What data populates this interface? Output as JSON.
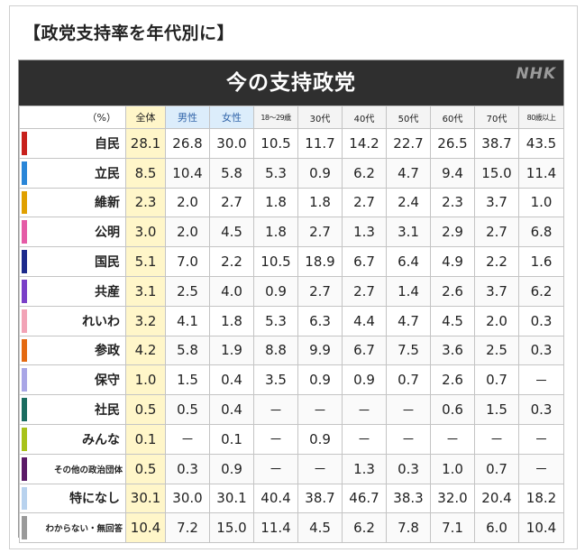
{
  "section_title": "【政党支持率を年代別に】",
  "banner": {
    "title": "今の支持政党",
    "logo": "NHK"
  },
  "chart_data": {
    "type": "table",
    "title": "今の支持政党",
    "unit_label": "（%）",
    "columns": [
      "全体",
      "男性",
      "女性",
      "18～29歳",
      "30代",
      "40代",
      "50代",
      "60代",
      "70代",
      "80歳以上"
    ],
    "rows": [
      {
        "party": "自民",
        "color": "#c8201c",
        "values": [
          "28.1",
          "26.8",
          "30.0",
          "10.5",
          "11.7",
          "14.2",
          "22.7",
          "26.5",
          "38.7",
          "43.5"
        ]
      },
      {
        "party": "立民",
        "color": "#2a86d8",
        "values": [
          "8.5",
          "10.4",
          "5.8",
          "5.3",
          "0.9",
          "6.2",
          "4.7",
          "9.4",
          "15.0",
          "11.4"
        ]
      },
      {
        "party": "維新",
        "color": "#e0a000",
        "values": [
          "2.3",
          "2.0",
          "2.7",
          "1.8",
          "1.8",
          "2.7",
          "2.4",
          "2.3",
          "3.7",
          "1.0"
        ]
      },
      {
        "party": "公明",
        "color": "#e55ba6",
        "values": [
          "3.0",
          "2.0",
          "4.5",
          "1.8",
          "2.7",
          "1.3",
          "3.1",
          "2.9",
          "2.7",
          "6.8"
        ]
      },
      {
        "party": "国民",
        "color": "#1c2a8c",
        "values": [
          "5.1",
          "7.0",
          "2.2",
          "10.5",
          "18.9",
          "6.7",
          "6.4",
          "4.9",
          "2.2",
          "1.6"
        ]
      },
      {
        "party": "共産",
        "color": "#7a3fc8",
        "values": [
          "3.1",
          "2.5",
          "4.0",
          "0.9",
          "2.7",
          "2.7",
          "1.4",
          "2.6",
          "3.7",
          "6.2"
        ]
      },
      {
        "party": "れいわ",
        "color": "#f2a3b6",
        "values": [
          "3.2",
          "4.1",
          "1.8",
          "5.3",
          "6.3",
          "4.4",
          "4.7",
          "4.5",
          "2.0",
          "0.3"
        ]
      },
      {
        "party": "参政",
        "color": "#e46a12",
        "values": [
          "4.2",
          "5.8",
          "1.9",
          "8.8",
          "9.9",
          "6.7",
          "7.5",
          "3.6",
          "2.5",
          "0.3"
        ]
      },
      {
        "party": "保守",
        "color": "#a9a6e6",
        "values": [
          "1.0",
          "1.5",
          "0.4",
          "3.5",
          "0.9",
          "0.9",
          "0.7",
          "2.6",
          "0.7",
          "－"
        ]
      },
      {
        "party": "社民",
        "color": "#1a6c60",
        "values": [
          "0.5",
          "0.5",
          "0.4",
          "－",
          "－",
          "－",
          "－",
          "0.6",
          "1.5",
          "0.3"
        ]
      },
      {
        "party": "みんな",
        "color": "#a8c21a",
        "values": [
          "0.1",
          "－",
          "0.1",
          "－",
          "0.9",
          "－",
          "－",
          "－",
          "－",
          "－"
        ]
      },
      {
        "party": "その他の政治団体",
        "color": "#5a1a66",
        "values": [
          "0.5",
          "0.3",
          "0.9",
          "－",
          "－",
          "1.3",
          "0.3",
          "1.0",
          "0.7",
          "－"
        ]
      },
      {
        "party": "特になし",
        "color": "#b8d2ee",
        "values": [
          "30.1",
          "30.0",
          "30.1",
          "40.4",
          "38.7",
          "46.7",
          "38.3",
          "32.0",
          "20.4",
          "18.2"
        ]
      },
      {
        "party": "わからない・無回答",
        "color": "#9a9a9a",
        "values": [
          "10.4",
          "7.2",
          "15.0",
          "11.4",
          "4.5",
          "6.2",
          "7.8",
          "7.1",
          "6.0",
          "10.4"
        ]
      }
    ]
  }
}
